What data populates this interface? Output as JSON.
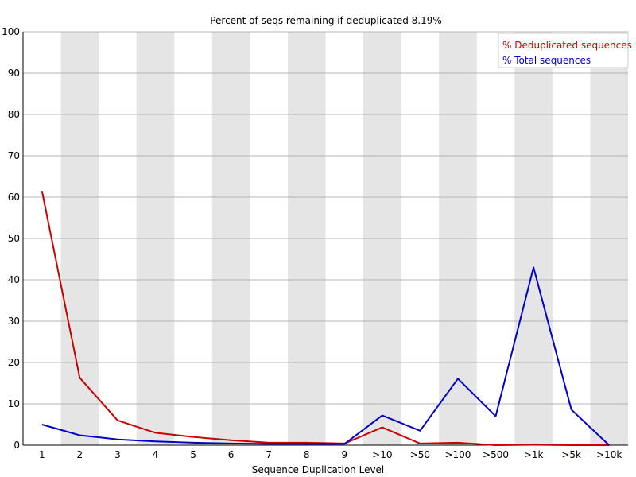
{
  "chart_data": {
    "type": "line",
    "title": "Percent of seqs remaining if deduplicated 8.19%",
    "xlabel": "Sequence Duplication Level",
    "ylabel": "",
    "ylim": [
      0,
      100
    ],
    "yticks": [
      0,
      10,
      20,
      30,
      40,
      50,
      60,
      70,
      80,
      90,
      100
    ],
    "grid": true,
    "legend_position": "top-right",
    "categories": [
      "1",
      "2",
      "3",
      "4",
      "5",
      "6",
      "7",
      "8",
      "9",
      ">10",
      ">50",
      ">100",
      ">500",
      ">1k",
      ">5k",
      ">10k"
    ],
    "series": [
      {
        "name": "% Deduplicated sequences",
        "color": "#cc0000",
        "values": [
          61.5,
          16.3,
          6.0,
          3.0,
          2.0,
          1.2,
          0.6,
          0.6,
          0.4,
          4.3,
          0.4,
          0.6,
          0.0,
          0.1,
          0.0,
          0.0
        ]
      },
      {
        "name": "% Total sequences",
        "color": "#0000cc",
        "values": [
          5.0,
          2.4,
          1.4,
          0.9,
          0.6,
          0.4,
          0.3,
          0.3,
          0.3,
          7.2,
          3.5,
          16.1,
          7.0,
          43.0,
          8.6,
          0.0
        ]
      }
    ]
  }
}
